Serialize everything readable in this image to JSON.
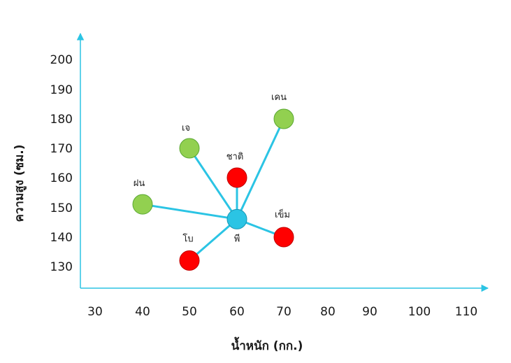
{
  "chart_data": {
    "type": "scatter",
    "title": "",
    "xlabel": "น้ำหนัก (กก.)",
    "ylabel": "ความสูง (ซม.)",
    "x_ticks": [
      "30",
      "40",
      "50",
      "60",
      "70",
      "80",
      "90",
      "100",
      "110"
    ],
    "y_ticks": [
      "130",
      "140",
      "150",
      "160",
      "170",
      "180",
      "190",
      "200"
    ],
    "xlim": [
      30,
      110
    ],
    "ylim": [
      130,
      200
    ],
    "grid": false,
    "center": {
      "name": "พี",
      "x": 60,
      "y": 146,
      "color": "#2bc4e4"
    },
    "points": [
      {
        "name": "ฝน",
        "x": 40,
        "y": 151,
        "color": "#92d050"
      },
      {
        "name": "เจ",
        "x": 50,
        "y": 170,
        "color": "#92d050"
      },
      {
        "name": "เคน",
        "x": 70,
        "y": 180,
        "color": "#92d050"
      },
      {
        "name": "ชาติ",
        "x": 60,
        "y": 160,
        "color": "#ff0000"
      },
      {
        "name": "เข็ม",
        "x": 70,
        "y": 140,
        "color": "#ff0000"
      },
      {
        "name": "โบ",
        "x": 50,
        "y": 132,
        "color": "#ff0000"
      }
    ],
    "axis_color": "#2bc4e4",
    "line_color": "#2bc4e4"
  }
}
